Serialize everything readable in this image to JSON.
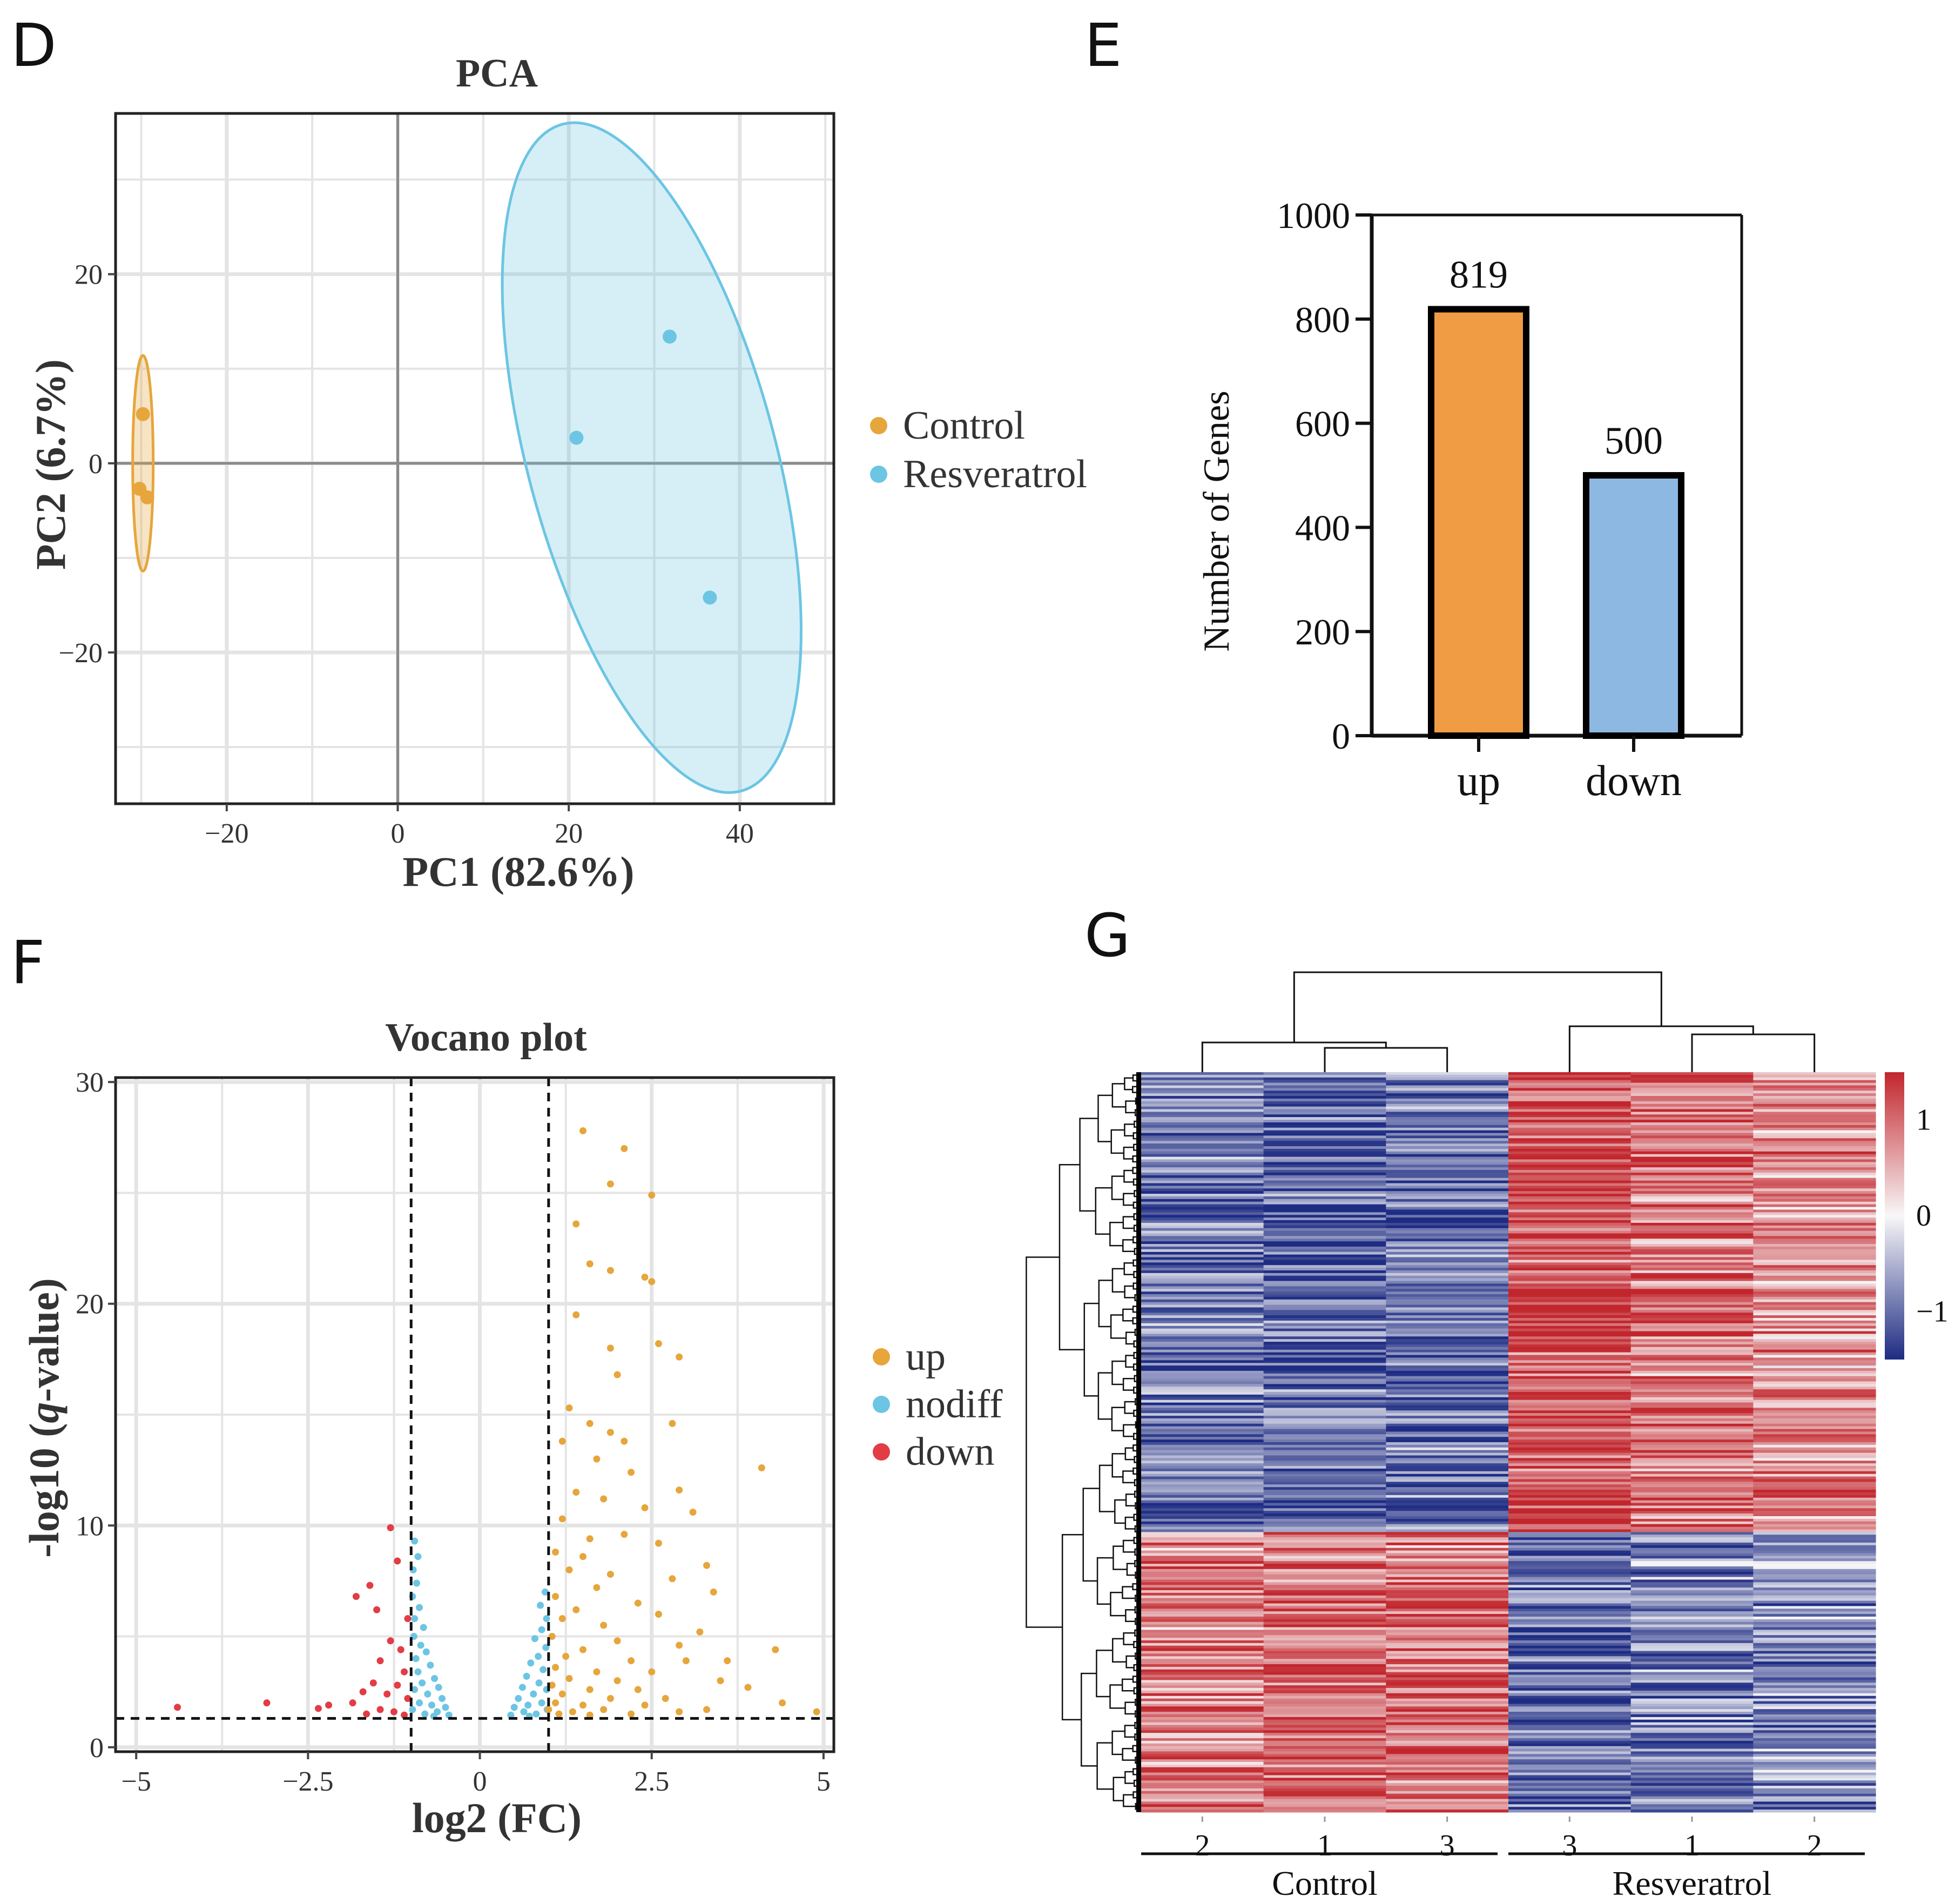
{
  "panels": {
    "d": "D",
    "e": "E",
    "f": "F",
    "g": "G"
  },
  "colors": {
    "control": "#E6A63C",
    "resveratrol": "#6CC5E3",
    "up": "#E6A63C",
    "nodiff": "#6CC5E3",
    "down": "#E23C45",
    "bar_up": "#F09C45",
    "bar_down": "#8DB8E2",
    "heat_low": "#1E2C83",
    "heat_mid": "#F8F7F8",
    "heat_high": "#C2262D"
  },
  "chart_data": [
    {
      "id": "pca",
      "type": "scatter",
      "title": "PCA",
      "xlabel": "PC1 (82.6%)",
      "ylabel": "PC2 (6.7%)",
      "xlim": [
        -33,
        51
      ],
      "ylim": [
        -36,
        37
      ],
      "xticks": [
        -20,
        0,
        20,
        40
      ],
      "yticks": [
        -20,
        0,
        20
      ],
      "x_tick_labels": [
        "−20",
        "0",
        "20",
        "40"
      ],
      "y_tick_labels": [
        "−20",
        "0",
        "20"
      ],
      "grid": true,
      "legend_position": "right",
      "series": [
        {
          "name": "Control",
          "color_key": "control",
          "points": [
            [
              -29.8,
              5.2
            ],
            [
              -30.2,
              -2.7
            ],
            [
              -29.3,
              -3.6
            ]
          ]
        },
        {
          "name": "Resveratrol",
          "color_key": "resveratrol",
          "points": [
            [
              31.8,
              13.4
            ],
            [
              20.9,
              2.7
            ],
            [
              36.5,
              -14.2
            ]
          ]
        }
      ]
    },
    {
      "id": "deg-bar",
      "type": "bar",
      "categories": [
        "up",
        "down"
      ],
      "values": [
        819,
        500
      ],
      "data_labels": [
        "819",
        "500"
      ],
      "xlabel": "",
      "ylabel": "Number of Genes",
      "ylim": [
        0,
        1000
      ],
      "yticks": [
        0,
        200,
        400,
        600,
        800,
        1000
      ],
      "y_tick_labels": [
        "0",
        "200",
        "400",
        "600",
        "800",
        "1000"
      ]
    },
    {
      "id": "volcano",
      "type": "scatter",
      "title": "Vocano plot",
      "xlabel": "log2 (FC)",
      "ylabel_parts": [
        "-log10 (",
        "q",
        "-value)"
      ],
      "xlim": [
        -5.3,
        5.15
      ],
      "ylim": [
        -0.2,
        30.2
      ],
      "xticks": [
        -5,
        -2.5,
        0,
        2.5,
        5
      ],
      "yticks": [
        0,
        10,
        20,
        30
      ],
      "x_tick_labels": [
        "−5",
        "−2.5",
        "0",
        "2.5",
        "5"
      ],
      "y_tick_labels": [
        "0",
        "10",
        "20",
        "30"
      ],
      "thresholds": {
        "log2fc": [
          -1,
          1
        ],
        "neg_log10_q": 1.3
      },
      "legend_position": "right",
      "legend": [
        "up",
        "nodiff",
        "down"
      ],
      "series": [
        {
          "name": "up",
          "color_key": "up",
          "points": [
            [
              1.5,
              27.8
            ],
            [
              2.1,
              27
            ],
            [
              1.9,
              25.4
            ],
            [
              2.5,
              24.9
            ],
            [
              1.4,
              23.6
            ],
            [
              1.6,
              21.8
            ],
            [
              1.9,
              21.5
            ],
            [
              2.4,
              21.2
            ],
            [
              2.5,
              21
            ],
            [
              1.4,
              19.5
            ],
            [
              1.9,
              18
            ],
            [
              2.6,
              18.2
            ],
            [
              2.9,
              17.6
            ],
            [
              2,
              16.8
            ],
            [
              1.3,
              15.3
            ],
            [
              1.6,
              14.6
            ],
            [
              2.8,
              14.6
            ],
            [
              1.2,
              13.8
            ],
            [
              1.9,
              14.2
            ],
            [
              2.1,
              13.8
            ],
            [
              1.7,
              13
            ],
            [
              2.2,
              12.4
            ],
            [
              4.1,
              12.6
            ],
            [
              1.4,
              11.5
            ],
            [
              2.9,
              11.6
            ],
            [
              1.8,
              11.2
            ],
            [
              2.4,
              10.8
            ],
            [
              3.1,
              10.6
            ],
            [
              1.2,
              10.3
            ],
            [
              1.6,
              9.4
            ],
            [
              2.1,
              9.6
            ],
            [
              2.6,
              9.2
            ],
            [
              1.1,
              8.8
            ],
            [
              1.5,
              8.6
            ],
            [
              3.3,
              8.2
            ],
            [
              1.3,
              8.0
            ],
            [
              1.9,
              7.8
            ],
            [
              2.8,
              7.6
            ],
            [
              1.7,
              7.2
            ],
            [
              3.4,
              7.0
            ],
            [
              1.1,
              6.8
            ],
            [
              2.3,
              6.5
            ],
            [
              1.4,
              6.2
            ],
            [
              2.6,
              6.0
            ],
            [
              1.2,
              5.8
            ],
            [
              1.8,
              5.5
            ],
            [
              3.2,
              5.2
            ],
            [
              1.05,
              5.0
            ],
            [
              2.0,
              4.8
            ],
            [
              2.9,
              4.6
            ],
            [
              1.5,
              4.4
            ],
            [
              4.3,
              4.4
            ],
            [
              1.25,
              4.1
            ],
            [
              2.2,
              3.9
            ],
            [
              3.0,
              3.9
            ],
            [
              3.6,
              3.9
            ],
            [
              1.1,
              3.6
            ],
            [
              1.7,
              3.4
            ],
            [
              2.5,
              3.4
            ],
            [
              1.3,
              3.1
            ],
            [
              2.0,
              3.0
            ],
            [
              3.5,
              3.0
            ],
            [
              1.05,
              2.8
            ],
            [
              1.6,
              2.6
            ],
            [
              2.3,
              2.6
            ],
            [
              3.9,
              2.7
            ],
            [
              1.2,
              2.4
            ],
            [
              1.9,
              2.2
            ],
            [
              2.7,
              2.2
            ],
            [
              1.1,
              2.0
            ],
            [
              1.5,
              1.9
            ],
            [
              2.4,
              1.9
            ],
            [
              4.4,
              2.0
            ],
            [
              1.0,
              1.7
            ],
            [
              1.35,
              1.6
            ],
            [
              1.8,
              1.7
            ],
            [
              2.9,
              1.6
            ],
            [
              3.3,
              1.7
            ],
            [
              4.9,
              1.6
            ],
            [
              1.15,
              1.5
            ],
            [
              2.2,
              1.5
            ],
            [
              1.6,
              1.45
            ]
          ]
        },
        {
          "name": "nodiff",
          "color_key": "nodiff",
          "points": [
            [
              -0.95,
              9.3
            ],
            [
              -0.9,
              8.6
            ],
            [
              -0.97,
              8.0
            ],
            [
              -0.92,
              7.4
            ],
            [
              -0.98,
              6.8
            ],
            [
              -0.88,
              6.3
            ],
            [
              -0.95,
              5.8
            ],
            [
              -0.82,
              5.4
            ],
            [
              -0.96,
              5.0
            ],
            [
              -0.86,
              4.6
            ],
            [
              -0.78,
              4.3
            ],
            [
              -0.93,
              4.0
            ],
            [
              -0.72,
              3.7
            ],
            [
              -0.9,
              3.4
            ],
            [
              -0.66,
              3.1
            ],
            [
              -0.84,
              2.9
            ],
            [
              -0.6,
              2.7
            ],
            [
              -0.95,
              2.6
            ],
            [
              -0.76,
              2.4
            ],
            [
              -0.55,
              2.2
            ],
            [
              -0.88,
              2.0
            ],
            [
              -0.7,
              1.9
            ],
            [
              -0.5,
              1.8
            ],
            [
              -0.98,
              1.7
            ],
            [
              -0.62,
              1.6
            ],
            [
              -0.8,
              1.5
            ],
            [
              -0.45,
              1.45
            ],
            [
              -0.67,
              1.4
            ],
            [
              0.95,
              7.0
            ],
            [
              0.88,
              6.4
            ],
            [
              0.97,
              5.8
            ],
            [
              0.9,
              5.3
            ],
            [
              0.8,
              4.9
            ],
            [
              0.96,
              4.5
            ],
            [
              0.85,
              4.1
            ],
            [
              0.74,
              3.8
            ],
            [
              0.92,
              3.5
            ],
            [
              0.68,
              3.2
            ],
            [
              0.86,
              2.9
            ],
            [
              0.62,
              2.7
            ],
            [
              0.97,
              2.6
            ],
            [
              0.78,
              2.4
            ],
            [
              0.56,
              2.2
            ],
            [
              0.9,
              2.0
            ],
            [
              0.7,
              1.9
            ],
            [
              0.5,
              1.8
            ],
            [
              0.98,
              1.7
            ],
            [
              0.64,
              1.6
            ],
            [
              0.82,
              1.5
            ],
            [
              0.45,
              1.45
            ],
            [
              0.72,
              1.4
            ]
          ]
        },
        {
          "name": "down",
          "color_key": "down",
          "points": [
            [
              -1.3,
              9.9
            ],
            [
              -1.2,
              8.4
            ],
            [
              -1.6,
              7.3
            ],
            [
              -1.8,
              6.8
            ],
            [
              -1.5,
              6.2
            ],
            [
              -1.05,
              5.8
            ],
            [
              -1.3,
              4.8
            ],
            [
              -1.15,
              4.4
            ],
            [
              -1.45,
              3.9
            ],
            [
              -1.1,
              3.4
            ],
            [
              -1.55,
              2.9
            ],
            [
              -1.2,
              2.8
            ],
            [
              -1.7,
              2.5
            ],
            [
              -1.35,
              2.4
            ],
            [
              -1.05,
              2.2
            ],
            [
              -1.85,
              2.0
            ],
            [
              -2.2,
              1.9
            ],
            [
              -2.35,
              1.75
            ],
            [
              -3.1,
              2.0
            ],
            [
              -4.4,
              1.8
            ],
            [
              -1.45,
              1.7
            ],
            [
              -1.25,
              1.6
            ],
            [
              -1.65,
              1.5
            ],
            [
              -1.1,
              1.45
            ]
          ]
        }
      ]
    },
    {
      "id": "heatmap",
      "type": "heatmap",
      "columns": [
        "2",
        "1",
        "3",
        "3",
        "1",
        "2"
      ],
      "groups": [
        {
          "name": "Control",
          "span": [
            0,
            2
          ]
        },
        {
          "name": "Resveratrol",
          "span": [
            3,
            5
          ]
        }
      ],
      "color_scale": {
        "min": -1.5,
        "max": 1.5,
        "ticks": [
          1,
          0,
          -1
        ],
        "tick_labels": [
          "1",
          "0",
          "−1"
        ]
      },
      "rows": 1319,
      "upregulated_block_fraction": 0.62,
      "column_means": {
        "up_block": [
          -0.9,
          -1.05,
          -0.95,
          1.2,
          0.9,
          0.7
        ],
        "down_block": [
          0.85,
          1.0,
          0.95,
          -1.0,
          -0.8,
          -0.75
        ]
      }
    }
  ]
}
